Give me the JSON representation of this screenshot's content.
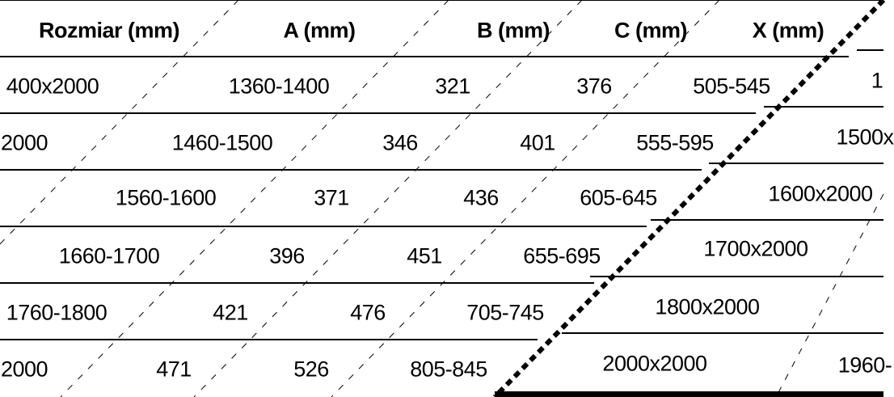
{
  "table": {
    "headers": [
      "Rozmiar (mm)",
      "A (mm)",
      "B (mm)",
      "C (mm)",
      "X (mm)"
    ],
    "rows": [
      {
        "size": "400x2000",
        "a": "1360-1400",
        "b": "321",
        "c": "376",
        "x": "505-545",
        "next": "1"
      },
      {
        "size": "2000",
        "a": "1460-1500",
        "b": "346",
        "c": "401",
        "x": "555-595",
        "next": "1500x"
      },
      {
        "a": "1560-1600",
        "b": "371",
        "c": "436",
        "x": "605-645",
        "next": "1600x2000"
      },
      {
        "a": "1660-1700",
        "b": "396",
        "c": "451",
        "x": "655-695",
        "next": "1700x2000"
      },
      {
        "a": "1760-1800",
        "b": "421",
        "c": "476",
        "x": "705-745",
        "next": "1800x2000"
      },
      {
        "size": "2000",
        "a": "471",
        "b": "526",
        "c": "805-845",
        "next": "2000x2000",
        "next2": "1960-"
      }
    ]
  }
}
